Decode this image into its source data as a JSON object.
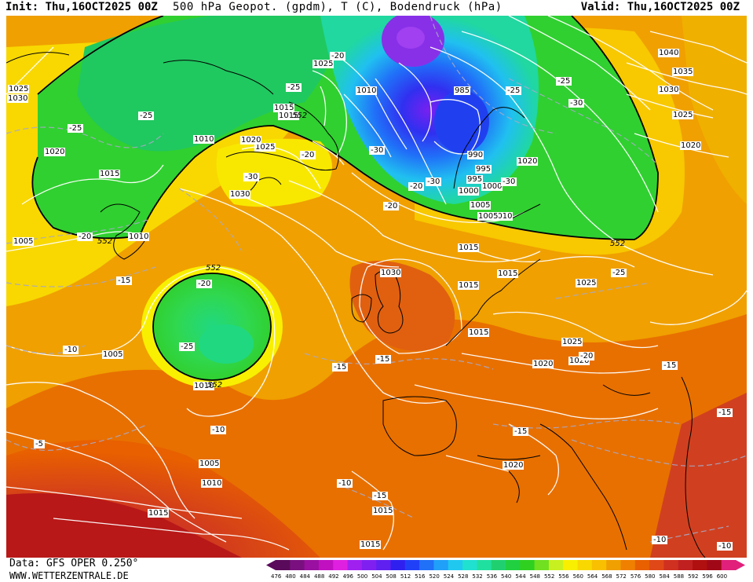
{
  "header": {
    "init": "Init: Thu,16OCT2025 00Z",
    "title": "500 hPa Geopot. (gpdm), T (C), Bodendruck (hPa)",
    "valid": "Valid: Thu,16OCT2025 00Z"
  },
  "footer": {
    "data_source": "Data: GFS OPER 0.250°",
    "website": "WWW.WETTERZENTRALE.DE"
  },
  "colorbar": {
    "ticks": [
      "476",
      "480",
      "484",
      "488",
      "492",
      "496",
      "500",
      "504",
      "508",
      "512",
      "516",
      "520",
      "524",
      "528",
      "532",
      "536",
      "540",
      "544",
      "548",
      "552",
      "556",
      "560",
      "564",
      "568",
      "572",
      "576",
      "580",
      "584",
      "588",
      "592",
      "596",
      "600"
    ],
    "colors": [
      "#5a0a5a",
      "#7a1080",
      "#9a10a0",
      "#c010c0",
      "#e020e0",
      "#a020f0",
      "#8020f0",
      "#6020f0",
      "#3020f0",
      "#2040f8",
      "#2070f8",
      "#20a0f8",
      "#20c8f0",
      "#20e0d0",
      "#20e0a0",
      "#20d070",
      "#20d040",
      "#30d020",
      "#70e020",
      "#c8f020",
      "#f8f000",
      "#f8d800",
      "#f8c000",
      "#f0a000",
      "#f08000",
      "#e86000",
      "#e04818",
      "#d03020",
      "#c02020",
      "#b01010",
      "#a00818",
      "#e0207a"
    ]
  },
  "map": {
    "pressure_labels": [
      "1025",
      "1020",
      "1010",
      "1015",
      "1040",
      "1035",
      "1030",
      "1025",
      "1020",
      "1015",
      "1010",
      "1005",
      "1000",
      "995",
      "990",
      "985",
      "1030",
      "1025",
      "1020",
      "1015",
      "1010",
      "1005",
      "1000",
      "995",
      "1005",
      "1010",
      "1015",
      "1020",
      "1025",
      "1030",
      "1015",
      "1010",
      "1015",
      "1015",
      "1020",
      "1025",
      "1025",
      "1020",
      "1015",
      "1005",
      "1005",
      "1010",
      "1015",
      "1015",
      "1020",
      "1030",
      "552",
      "552",
      "552",
      "552",
      "552"
    ],
    "temp_labels": [
      "-25",
      "-25",
      "-25",
      "-25",
      "-25",
      "-25",
      "-30",
      "-30",
      "-30",
      "-30",
      "-20",
      "-20",
      "-20",
      "-20",
      "-20",
      "-20",
      "-15",
      "-15",
      "-15",
      "-15",
      "-15",
      "-15",
      "-15",
      "-10",
      "-10",
      "-10",
      "-10",
      "-10",
      "-5",
      "-25",
      "-30",
      "-20"
    ]
  },
  "colors": {
    "green": "#20c848",
    "lightgreen": "#30e030",
    "yellow": "#f8f000",
    "orange": "#f0a000",
    "darkorange": "#e87000",
    "red": "#d03818",
    "blue": "#2040f8",
    "cyan": "#20c8f0",
    "purple": "#8020f0"
  }
}
